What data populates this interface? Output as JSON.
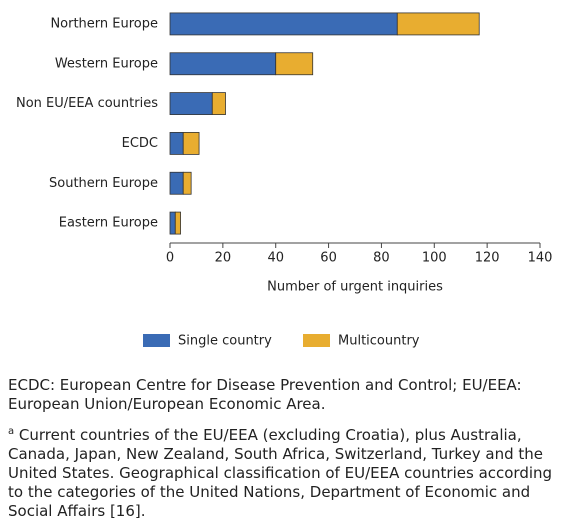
{
  "chart_data": {
    "type": "stacked-barh",
    "xlabel": "Number of urgent inquiries",
    "categories": [
      "Northern Europe",
      "Western Europe",
      "Non EU/EEA countries",
      "ECDC",
      "Southern Europe",
      "Eastern Europe"
    ],
    "series": [
      {
        "name": "Single country",
        "color": "#3a6bb5",
        "values": [
          86,
          40,
          16,
          5,
          5,
          2
        ]
      },
      {
        "name": "Multicountry",
        "color": "#e8ad30",
        "values": [
          31,
          14,
          5,
          6,
          3,
          2
        ]
      }
    ],
    "xlim": [
      0,
      140
    ],
    "xticks": [
      0,
      20,
      40,
      60,
      80,
      100,
      120,
      140
    ],
    "legend": "bottom"
  },
  "footnotes": [
    {
      "text": "ECDC: European Centre for Disease Prevention and Control; EU/EEA: European Union/European Economic Area."
    },
    {
      "marker": "a",
      "text": "Current countries of the EU/EEA (excluding Croatia), plus Australia, Canada, Japan, New Zealand, South Africa, Switzerland, Turkey and the United States. Geographical classification of EU/EEA countries according to the categories of the United Nations, Department of Economic and Social Affairs [16]."
    }
  ]
}
